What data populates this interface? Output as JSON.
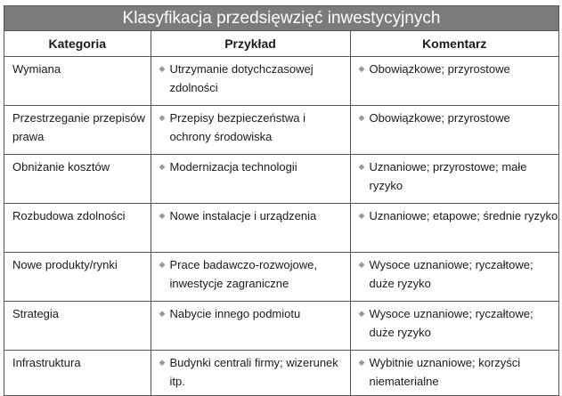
{
  "title": "Klasyfikacja przedsięwzięć inwestycyjnych",
  "headers": [
    "Kategoria",
    "Przykład",
    "Komentarz"
  ],
  "rows": [
    {
      "category": "Wymiana",
      "example": "Utrzymanie dotychczasowej zdolności",
      "comment": "Obowiązkowe; przyrostowe"
    },
    {
      "category": "Przestrzeganie przepisów prawa",
      "example": "Przepisy bezpieczeństwa i ochrony środowiska",
      "comment": "Obowiązkowe; przyrostowe"
    },
    {
      "category": "Obniżanie kosztów",
      "example": "Modernizacja technologii",
      "comment": "Uznaniowe; przyrostowe; małe ryzyko"
    },
    {
      "category": "Rozbudowa zdolności",
      "example": "Nowe instalacje i urządzenia",
      "comment": "Uznaniowe; etapowe; średnie ryzyko"
    },
    {
      "category": "Nowe produkty/rynki",
      "example": "Prace badawczo-rozwojowe, inwestycje zagraniczne",
      "comment": "Wysoce uznaniowe; ryczałtowe; duże ryzyko"
    },
    {
      "category": "Strategia",
      "example": "Nabycie innego podmiotu",
      "comment": "Wysoce uznaniowe; ryczałtowe; duże ryzyko"
    },
    {
      "category": "Infrastruktura",
      "example": "Budynki centrali firmy; wizerunek itp.",
      "comment": "Wybitnie uznaniowe; korzyści niematerialne"
    }
  ],
  "bullet_icon": "diamond-bullet"
}
